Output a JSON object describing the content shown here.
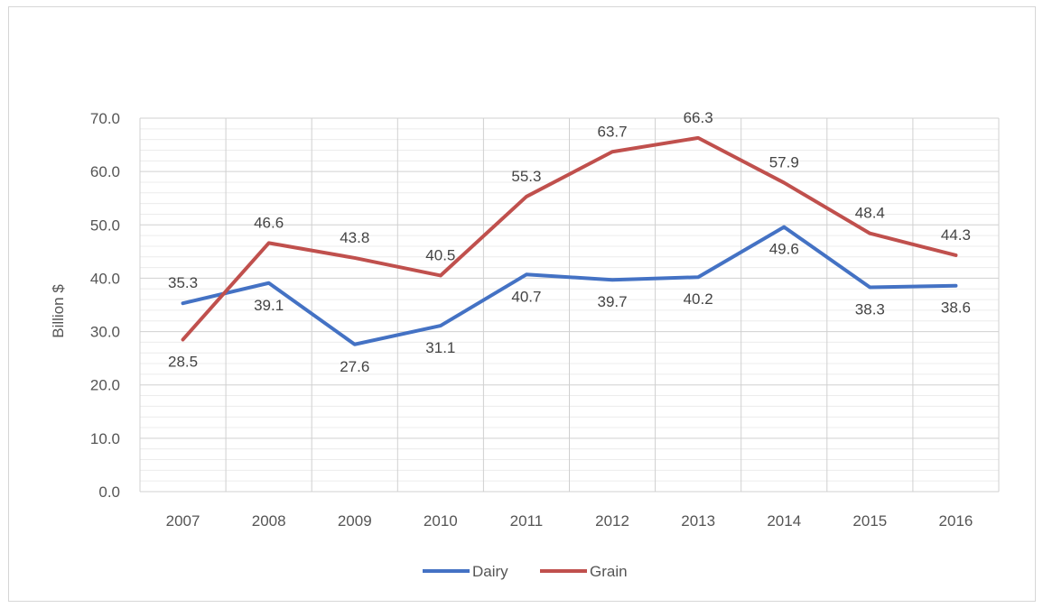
{
  "chart_data": {
    "type": "line",
    "title": "",
    "xlabel": "",
    "ylabel": "Billion $",
    "categories": [
      "2007",
      "2008",
      "2009",
      "2010",
      "2011",
      "2012",
      "2013",
      "2014",
      "2015",
      "2016"
    ],
    "ylim": [
      0,
      70
    ],
    "y_ticks": [
      "0.0",
      "10.0",
      "20.0",
      "30.0",
      "40.0",
      "50.0",
      "60.0",
      "70.0"
    ],
    "grid": "major and minor",
    "legend_position": "bottom",
    "series": [
      {
        "name": "Dairy",
        "color": "#4472c4",
        "values": [
          35.3,
          39.1,
          27.6,
          31.1,
          40.7,
          39.7,
          40.2,
          49.6,
          38.3,
          38.6
        ],
        "labels": [
          "35.3",
          "39.1",
          "27.6",
          "31.1",
          "40.7",
          "39.7",
          "40.2",
          "49.6",
          "38.3",
          "38.6"
        ]
      },
      {
        "name": "Grain",
        "color": "#c0504d",
        "values": [
          28.5,
          46.6,
          43.8,
          40.5,
          55.3,
          63.7,
          66.3,
          57.9,
          48.4,
          44.3
        ],
        "labels": [
          "28.5",
          "46.6",
          "43.8",
          "40.5",
          "55.3",
          "63.7",
          "66.3",
          "57.9",
          "48.4",
          "44.3"
        ]
      }
    ]
  }
}
